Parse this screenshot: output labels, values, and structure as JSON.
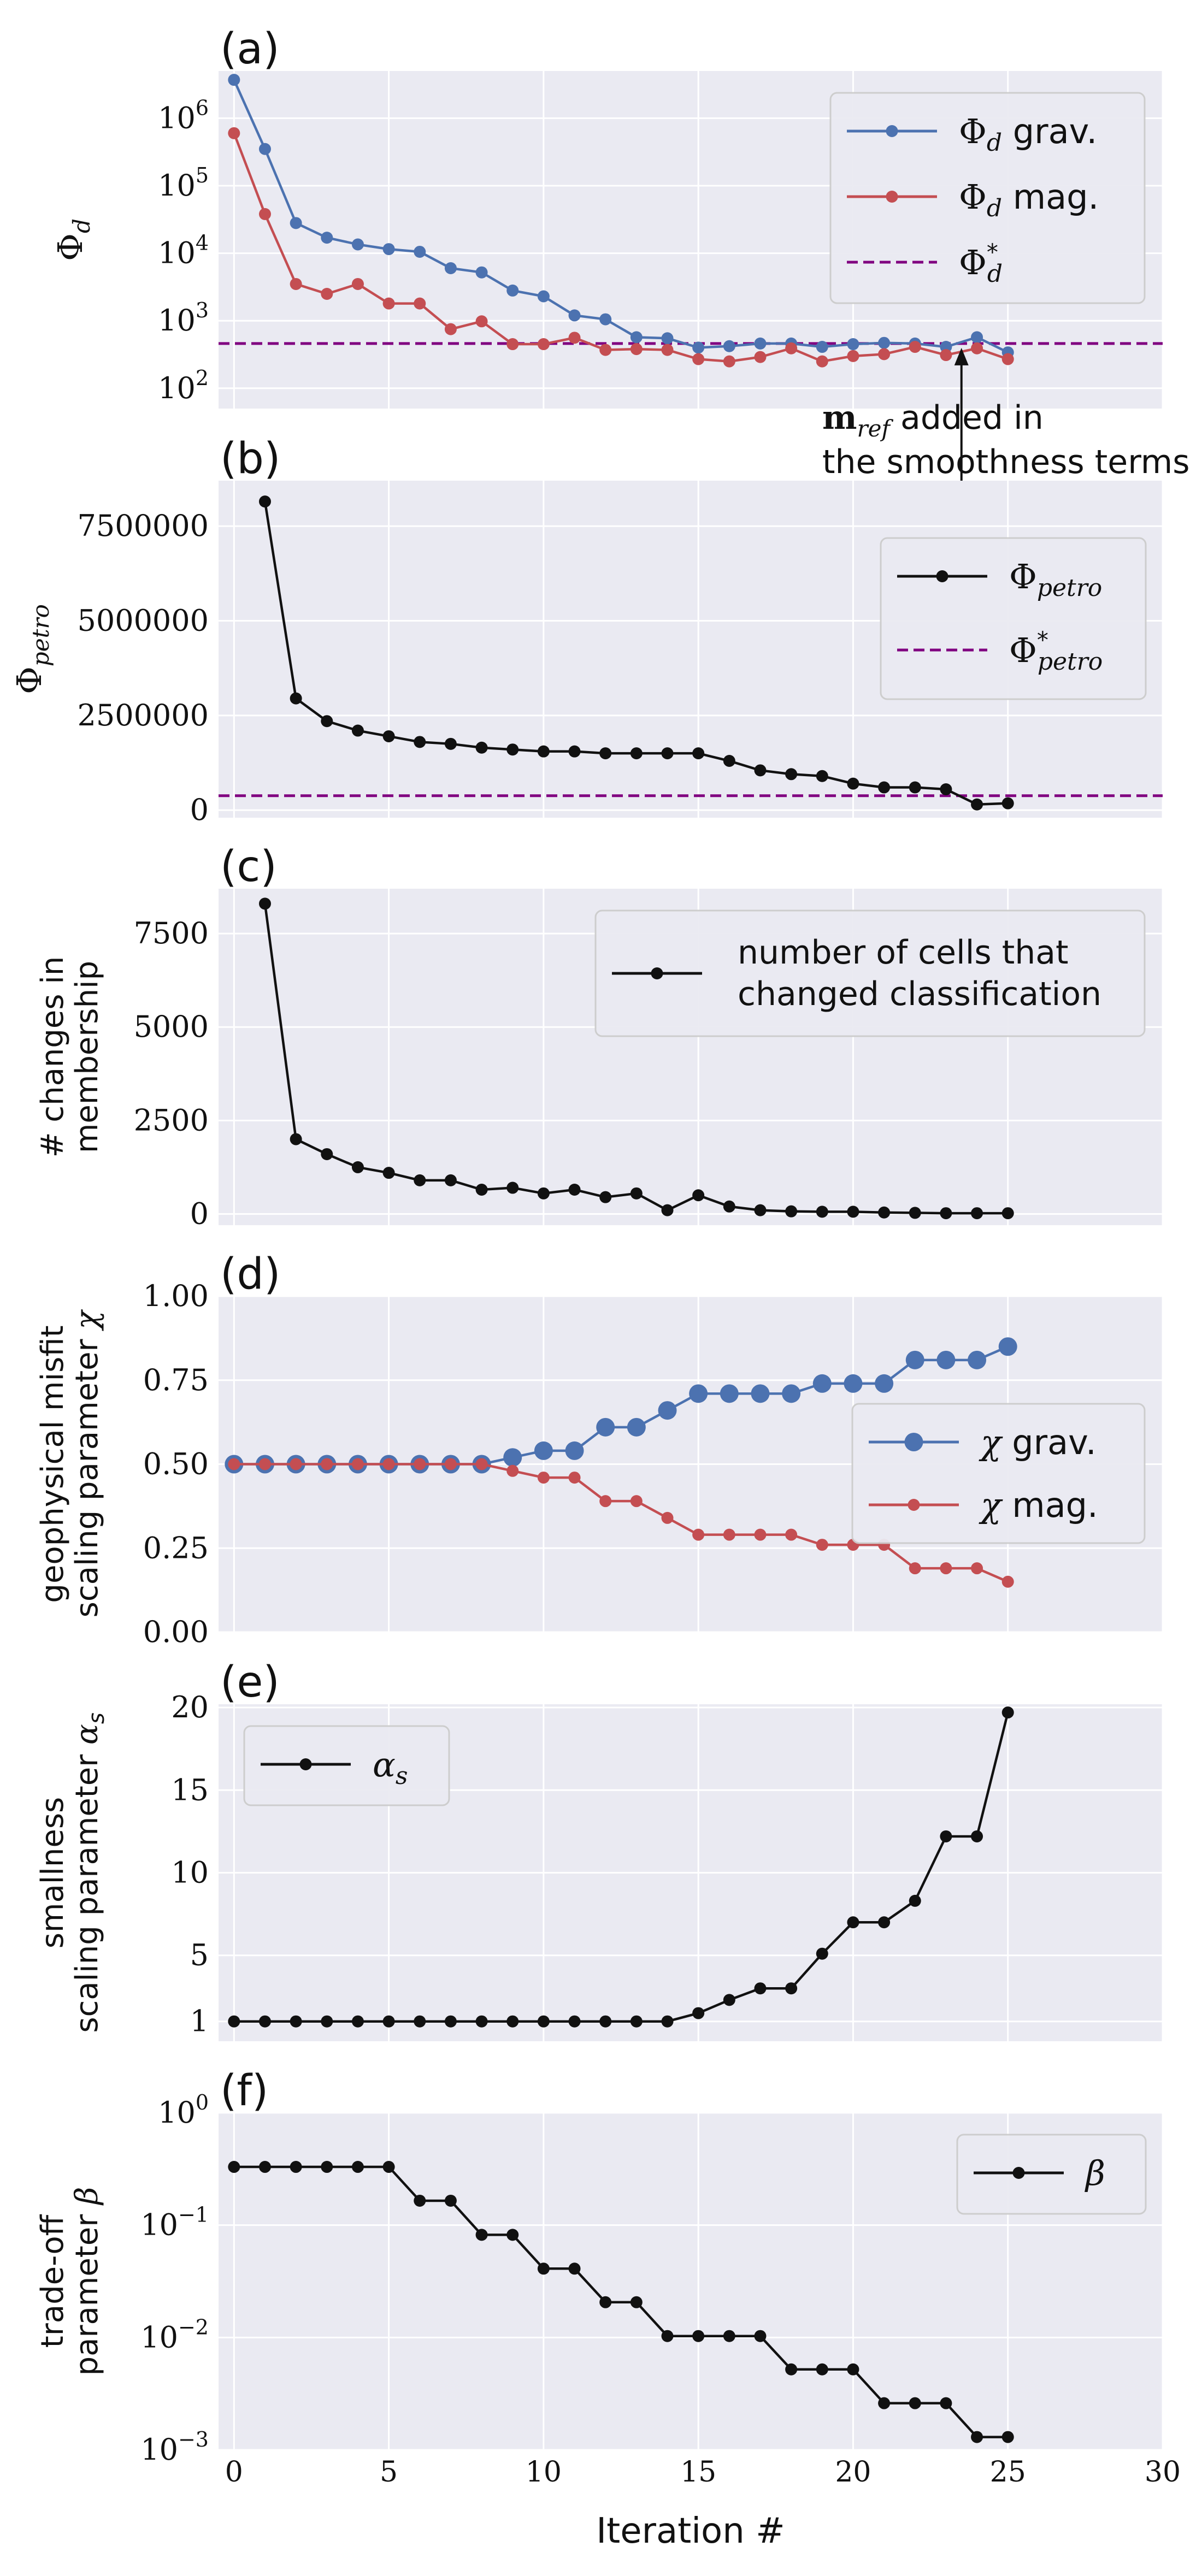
{
  "figure": {
    "xlabel": "Iteration #",
    "xlim": [
      -0.5,
      30
    ],
    "xticks": [
      0,
      5,
      10,
      15,
      20,
      25,
      30
    ],
    "grid": true,
    "background_color": "#EAEAF2",
    "grid_color": "#FFFFFF"
  },
  "colors": {
    "blue": "#4C72B0",
    "red": "#C44E52",
    "black": "#111111",
    "purple": "#800080"
  },
  "chart_data": [
    {
      "panel": "(a)",
      "type": "line",
      "ylabel": "Φ_d",
      "yscale": "log",
      "ylim": [
        50,
        5000000
      ],
      "yticks": [
        100,
        1000,
        10000,
        100000,
        1000000
      ],
      "ytick_labels": [
        "10^2",
        "10^3",
        "10^4",
        "10^5",
        "10^6"
      ],
      "legend_position": "top-right",
      "x": [
        0,
        1,
        2,
        3,
        4,
        5,
        6,
        7,
        8,
        9,
        10,
        11,
        12,
        13,
        14,
        15,
        16,
        17,
        18,
        19,
        20,
        21,
        22,
        23,
        24,
        25
      ],
      "series": [
        {
          "name": "Φ_d grav.",
          "color": "#4C72B0",
          "marker": true,
          "values": [
            3700000,
            350000,
            28000,
            17000,
            13500,
            11500,
            10500,
            6000,
            5200,
            2800,
            2300,
            1200,
            1050,
            570,
            550,
            400,
            420,
            460,
            460,
            410,
            450,
            470,
            460,
            410,
            570,
            340
          ]
        },
        {
          "name": "Φ_d mag.",
          "color": "#C44E52",
          "marker": true,
          "values": [
            600000,
            38000,
            3500,
            2500,
            3500,
            1800,
            1800,
            750,
            980,
            450,
            450,
            560,
            370,
            380,
            370,
            270,
            250,
            290,
            390,
            250,
            300,
            320,
            410,
            310,
            390,
            270
          ]
        }
      ],
      "hlines": [
        {
          "name": "Φ*_d",
          "value": 460,
          "style": "dashed",
          "color": "#800080"
        }
      ],
      "annotation": {
        "text_line1": "added in",
        "text_line2": "the smoothness terms",
        "symbol": "m_ref",
        "x": 23.5
      }
    },
    {
      "panel": "(b)",
      "type": "line",
      "ylabel": "Φ_petro",
      "yscale": "linear",
      "ylim": [
        -200000,
        8700000
      ],
      "yticks": [
        0,
        2500000,
        5000000,
        7500000
      ],
      "ytick_labels": [
        "0",
        "2500000",
        "5000000",
        "7500000"
      ],
      "legend_position": "right",
      "x": [
        1,
        2,
        3,
        4,
        5,
        6,
        7,
        8,
        9,
        10,
        11,
        12,
        13,
        14,
        15,
        16,
        17,
        18,
        19,
        20,
        21,
        22,
        23,
        24,
        25
      ],
      "series": [
        {
          "name": "Φ_petro",
          "color": "#111111",
          "marker": true,
          "values": [
            8150000,
            2950000,
            2350000,
            2100000,
            1950000,
            1800000,
            1750000,
            1650000,
            1600000,
            1550000,
            1550000,
            1500000,
            1500000,
            1500000,
            1500000,
            1300000,
            1050000,
            950000,
            900000,
            700000,
            600000,
            600000,
            550000,
            150000,
            180000
          ]
        }
      ],
      "hlines": [
        {
          "name": "Φ*_petro",
          "value": 380000,
          "style": "dashed",
          "color": "#800080"
        }
      ]
    },
    {
      "panel": "(c)",
      "type": "line",
      "ylabel": "# changes in membership",
      "ylabel_lines": [
        "# changes in",
        "membership"
      ],
      "yscale": "linear",
      "ylim": [
        -300,
        8700
      ],
      "yticks": [
        0,
        2500,
        5000,
        7500
      ],
      "ytick_labels": [
        "0",
        "2500",
        "5000",
        "7500"
      ],
      "legend_position": "top-right",
      "x": [
        1,
        2,
        3,
        4,
        5,
        6,
        7,
        8,
        9,
        10,
        11,
        12,
        13,
        14,
        15,
        16,
        17,
        18,
        19,
        20,
        21,
        22,
        23,
        24,
        25
      ],
      "series": [
        {
          "name": "number of cells that changed classification",
          "name_lines": [
            "number of cells that",
            "changed classification"
          ],
          "color": "#111111",
          "marker": true,
          "values": [
            8300,
            2000,
            1600,
            1250,
            1100,
            900,
            900,
            650,
            700,
            550,
            650,
            450,
            550,
            100,
            500,
            200,
            100,
            70,
            60,
            60,
            40,
            30,
            20,
            20,
            20
          ]
        }
      ]
    },
    {
      "panel": "(d)",
      "type": "line",
      "ylabel": "geophysical misfit scaling parameter χ",
      "ylabel_lines": [
        "geophysical misfit",
        "scaling parameter"
      ],
      "ylabel_symbol": "χ",
      "yscale": "linear",
      "ylim": [
        0,
        1
      ],
      "yticks": [
        0,
        0.25,
        0.5,
        0.75,
        1
      ],
      "ytick_labels": [
        "0.00",
        "0.25",
        "0.50",
        "0.75",
        "1.00"
      ],
      "legend_position": "right",
      "x": [
        0,
        1,
        2,
        3,
        4,
        5,
        6,
        7,
        8,
        9,
        10,
        11,
        12,
        13,
        14,
        15,
        16,
        17,
        18,
        19,
        20,
        21,
        22,
        23,
        24,
        25
      ],
      "series": [
        {
          "name": "χ grav.",
          "color": "#4C72B0",
          "marker": true,
          "large_marker": true,
          "values": [
            0.5,
            0.5,
            0.5,
            0.5,
            0.5,
            0.5,
            0.5,
            0.5,
            0.5,
            0.52,
            0.54,
            0.54,
            0.61,
            0.61,
            0.66,
            0.71,
            0.71,
            0.71,
            0.71,
            0.74,
            0.74,
            0.74,
            0.81,
            0.81,
            0.81,
            0.85
          ]
        },
        {
          "name": "χ mag.",
          "color": "#C44E52",
          "marker": true,
          "values": [
            0.5,
            0.5,
            0.5,
            0.5,
            0.5,
            0.5,
            0.5,
            0.5,
            0.5,
            0.48,
            0.46,
            0.46,
            0.39,
            0.39,
            0.34,
            0.29,
            0.29,
            0.29,
            0.29,
            0.26,
            0.26,
            0.26,
            0.19,
            0.19,
            0.19,
            0.15
          ]
        }
      ]
    },
    {
      "panel": "(e)",
      "type": "line",
      "ylabel": "smallness scaling parameter α_s",
      "ylabel_lines": [
        "smallness",
        "scaling parameter"
      ],
      "ylabel_symbol": "α",
      "yscale": "linear",
      "ylim": [
        -0.2,
        20.2
      ],
      "yticks": [
        1,
        5,
        10,
        15,
        20
      ],
      "ytick_labels": [
        "1",
        "5",
        "10",
        "15",
        "20"
      ],
      "legend_position": "top-left",
      "x": [
        0,
        1,
        2,
        3,
        4,
        5,
        6,
        7,
        8,
        9,
        10,
        11,
        12,
        13,
        14,
        15,
        16,
        17,
        18,
        19,
        20,
        21,
        22,
        23,
        24,
        25
      ],
      "series": [
        {
          "name": "α_s",
          "color": "#111111",
          "marker": true,
          "values": [
            1,
            1,
            1,
            1,
            1,
            1,
            1,
            1,
            1,
            1,
            1,
            1,
            1,
            1,
            1,
            1.5,
            2.3,
            3,
            3,
            5.1,
            7,
            7,
            8.3,
            12.2,
            12.2,
            19.7
          ]
        }
      ]
    },
    {
      "panel": "(f)",
      "type": "line",
      "ylabel": "trade-off parameter β",
      "ylabel_lines": [
        "trade-off",
        "parameter"
      ],
      "ylabel_symbol": "β",
      "yscale": "log",
      "ylim": [
        0.001,
        1
      ],
      "yticks": [
        0.001,
        0.01,
        0.1,
        1
      ],
      "ytick_labels": [
        "10^-3",
        "10^-2",
        "10^-1",
        "10^0"
      ],
      "legend_position": "top-right",
      "x": [
        0,
        1,
        2,
        3,
        4,
        5,
        6,
        7,
        8,
        9,
        10,
        11,
        12,
        13,
        14,
        15,
        16,
        17,
        18,
        19,
        20,
        21,
        22,
        23,
        24,
        25
      ],
      "series": [
        {
          "name": "β",
          "color": "#111111",
          "marker": true,
          "values": [
            0.33,
            0.33,
            0.33,
            0.33,
            0.33,
            0.33,
            0.165,
            0.165,
            0.082,
            0.082,
            0.041,
            0.041,
            0.0206,
            0.0206,
            0.0103,
            0.0103,
            0.0103,
            0.0103,
            0.0052,
            0.0052,
            0.0052,
            0.0026,
            0.0026,
            0.0026,
            0.0013,
            0.0013
          ]
        }
      ]
    }
  ]
}
